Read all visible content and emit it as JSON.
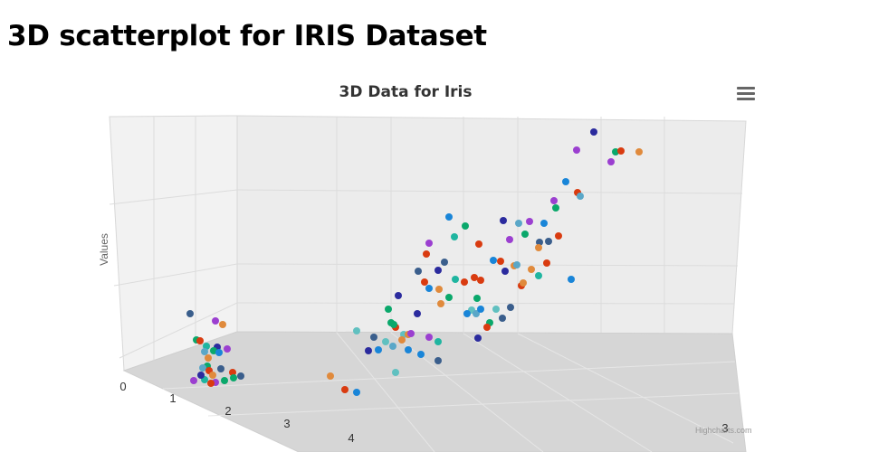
{
  "page": {
    "title": "3D scatterplot for IRIS Dataset"
  },
  "chart": {
    "credits": "Highcharts.com",
    "menu_icon": "hamburger-menu-icon"
  },
  "chart_data": {
    "type": "scatter",
    "title": "3D Data for Iris",
    "ylabel": "Values",
    "xlabel": "",
    "x_ticks": [
      "0",
      "1",
      "2",
      "3",
      "4"
    ],
    "z_ticks": [
      "3"
    ],
    "grid": true,
    "legend": "none",
    "colors": [
      "#2f7ed8",
      "#0d233a",
      "#8bbc21",
      "#910000",
      "#1aadce",
      "#492970",
      "#f28f43",
      "#77a1e5",
      "#c42525",
      "#a6c96a"
    ],
    "palette_used": [
      "#2b2b9e",
      "#1985d8",
      "#0aa86b",
      "#d93b10",
      "#9b3fd0",
      "#e08a3c",
      "#5aa7c8",
      "#3a5e8c",
      "#1fb5a0",
      "#60c0c0"
    ],
    "points": [
      [
        656,
        146,
        0
      ],
      [
        637,
        166,
        4
      ],
      [
        680,
        168,
        2
      ],
      [
        686,
        167,
        3
      ],
      [
        675,
        179,
        4
      ],
      [
        706,
        168,
        5
      ],
      [
        625,
        201,
        1
      ],
      [
        638,
        213,
        3
      ],
      [
        641,
        217,
        6
      ],
      [
        612,
        222,
        4
      ],
      [
        614,
        230,
        2
      ],
      [
        496,
        240,
        1
      ],
      [
        514,
        250,
        2
      ],
      [
        556,
        244,
        0
      ],
      [
        573,
        247,
        6
      ],
      [
        585,
        245,
        4
      ],
      [
        601,
        247,
        1
      ],
      [
        502,
        262,
        8
      ],
      [
        474,
        269,
        4
      ],
      [
        471,
        281,
        3
      ],
      [
        529,
        270,
        3
      ],
      [
        563,
        265,
        4
      ],
      [
        580,
        259,
        2
      ],
      [
        596,
        268,
        7
      ],
      [
        606,
        267,
        7
      ],
      [
        617,
        261,
        3
      ],
      [
        595,
        274,
        5
      ],
      [
        491,
        290,
        7
      ],
      [
        484,
        299,
        0
      ],
      [
        545,
        288,
        1
      ],
      [
        553,
        289,
        3
      ],
      [
        568,
        294,
        5
      ],
      [
        571,
        293,
        6
      ],
      [
        587,
        298,
        5
      ],
      [
        604,
        291,
        3
      ],
      [
        631,
        309,
        1
      ],
      [
        595,
        305,
        8
      ],
      [
        462,
        300,
        7
      ],
      [
        503,
        309,
        8
      ],
      [
        524,
        307,
        3
      ],
      [
        513,
        312,
        3
      ],
      [
        531,
        310,
        3
      ],
      [
        558,
        300,
        0
      ],
      [
        576,
        316,
        3
      ],
      [
        578,
        313,
        5
      ],
      [
        469,
        312,
        3
      ],
      [
        474,
        319,
        1
      ],
      [
        485,
        320,
        5
      ],
      [
        440,
        327,
        0
      ],
      [
        496,
        329,
        2
      ],
      [
        487,
        336,
        5
      ],
      [
        527,
        330,
        2
      ],
      [
        521,
        343,
        9
      ],
      [
        548,
        342,
        9
      ],
      [
        516,
        347,
        1
      ],
      [
        526,
        347,
        6
      ],
      [
        531,
        342,
        1
      ],
      [
        564,
        340,
        7
      ],
      [
        555,
        352,
        7
      ],
      [
        429,
        342,
        2
      ],
      [
        461,
        347,
        0
      ],
      [
        432,
        357,
        2
      ],
      [
        437,
        362,
        3
      ],
      [
        435,
        359,
        2
      ],
      [
        541,
        357,
        2
      ],
      [
        538,
        362,
        3
      ],
      [
        446,
        370,
        9
      ],
      [
        451,
        370,
        5
      ],
      [
        454,
        369,
        4
      ],
      [
        474,
        373,
        4
      ],
      [
        484,
        378,
        8
      ],
      [
        413,
        373,
        7
      ],
      [
        426,
        378,
        9
      ],
      [
        434,
        383,
        6
      ],
      [
        444,
        376,
        5
      ],
      [
        451,
        387,
        1
      ],
      [
        407,
        388,
        0
      ],
      [
        418,
        387,
        1
      ],
      [
        465,
        392,
        1
      ],
      [
        484,
        399,
        7
      ],
      [
        528,
        374,
        0
      ],
      [
        394,
        366,
        9
      ],
      [
        437,
        412,
        9
      ],
      [
        365,
        416,
        5
      ],
      [
        381,
        431,
        3
      ],
      [
        394,
        434,
        1
      ],
      [
        210,
        347,
        7
      ],
      [
        238,
        355,
        4
      ],
      [
        246,
        359,
        5
      ],
      [
        217,
        376,
        2
      ],
      [
        221,
        377,
        3
      ],
      [
        228,
        383,
        8
      ],
      [
        240,
        384,
        0
      ],
      [
        251,
        386,
        4
      ],
      [
        226,
        389,
        6
      ],
      [
        236,
        388,
        2
      ],
      [
        230,
        396,
        5
      ],
      [
        242,
        390,
        1
      ],
      [
        229,
        405,
        2
      ],
      [
        224,
        407,
        6
      ],
      [
        231,
        410,
        3
      ],
      [
        244,
        408,
        7
      ],
      [
        257,
        412,
        3
      ],
      [
        258,
        418,
        2
      ],
      [
        266,
        416,
        7
      ],
      [
        214,
        421,
        4
      ],
      [
        226,
        420,
        8
      ],
      [
        238,
        423,
        4
      ],
      [
        248,
        421,
        2
      ],
      [
        233,
        424,
        3
      ],
      [
        222,
        415,
        0
      ],
      [
        235,
        415,
        5
      ]
    ]
  }
}
